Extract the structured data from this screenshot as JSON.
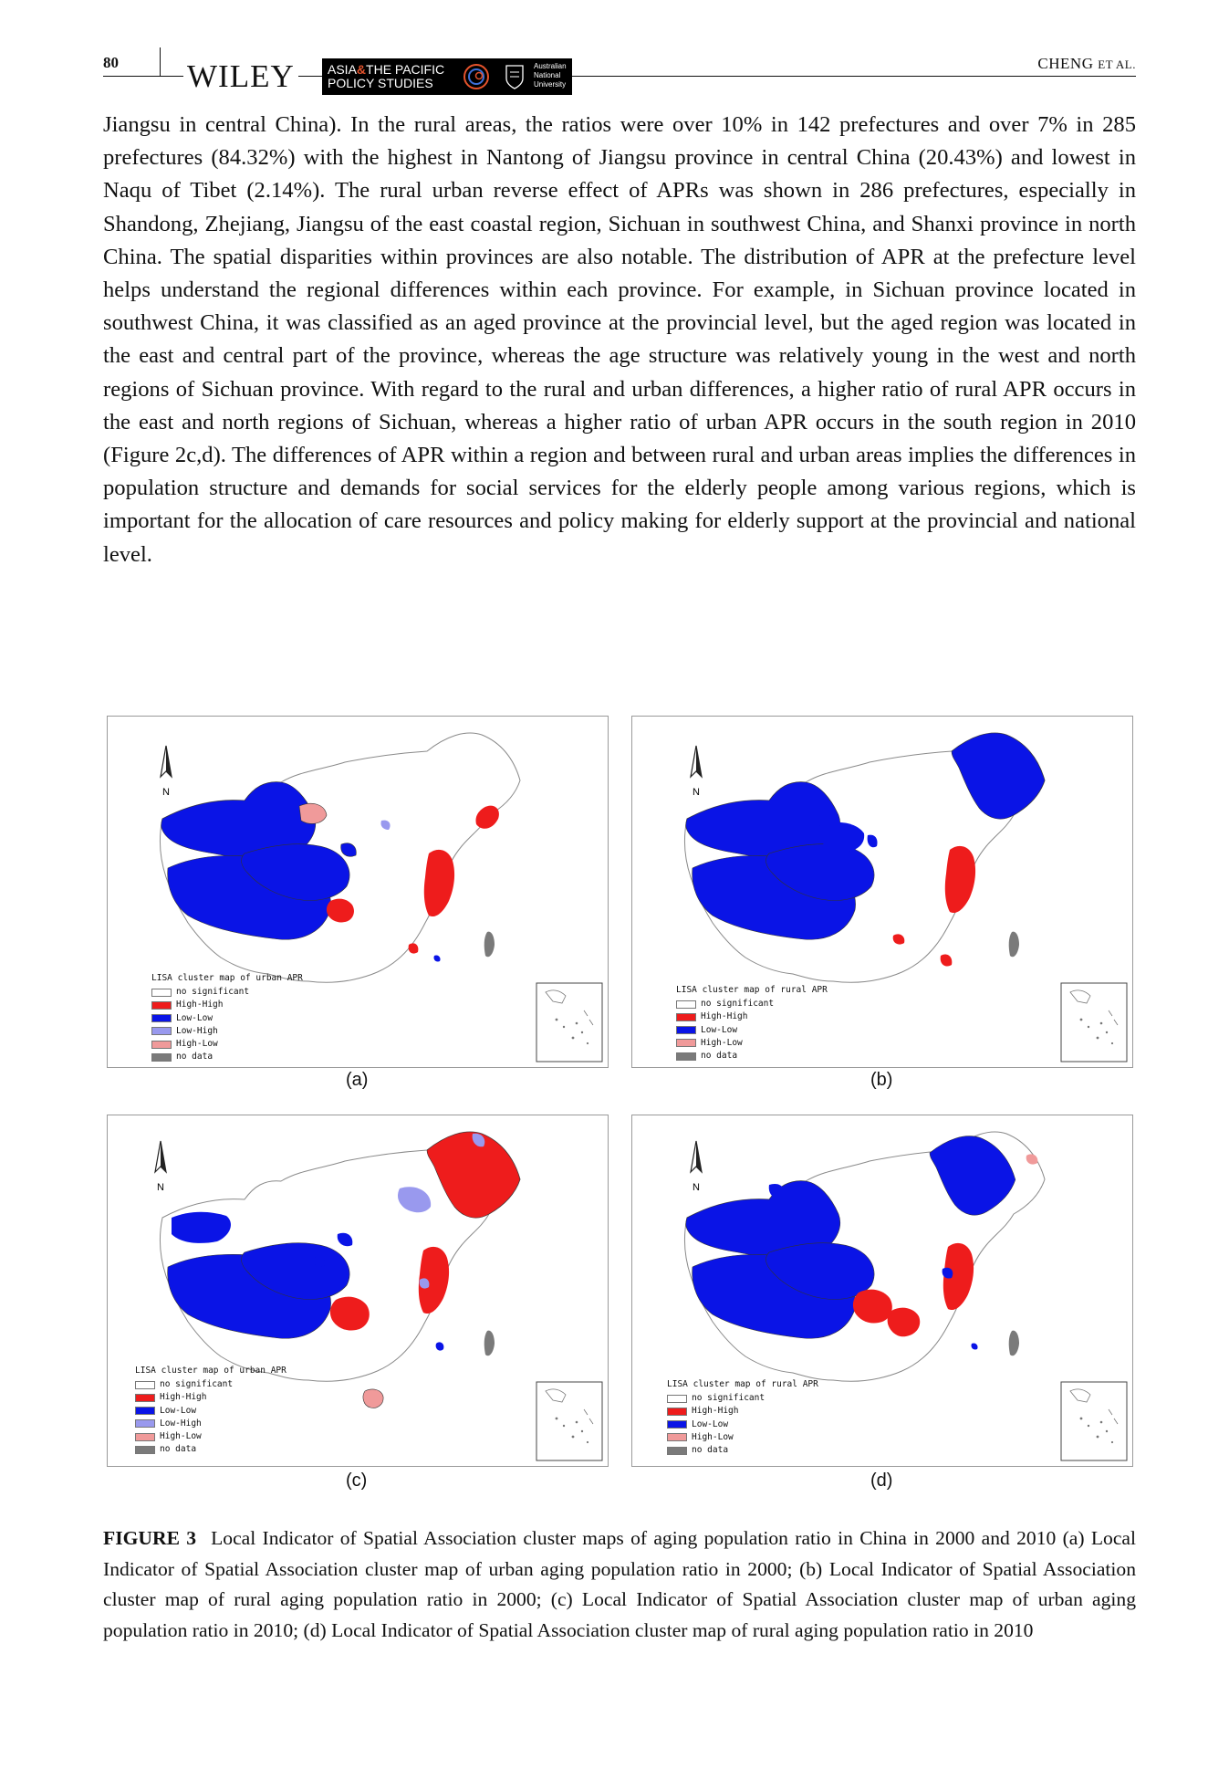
{
  "header": {
    "page_number": "80",
    "publisher": "WILEY",
    "journal_line1_a": "ASIA",
    "journal_amp": "&",
    "journal_line1_b": "THE PACIFIC",
    "journal_line2": "POLICY STUDIES",
    "institution": [
      "Australian",
      "National",
      "University"
    ],
    "running_author": "CHENG",
    "running_etal": "ET AL."
  },
  "body_paragraph": "Jiangsu in central China). In the rural areas, the ratios were over 10% in 142 prefectures and over 7% in 285 prefectures (84.32%) with the highest in Nantong of Jiangsu province in central China (20.43%) and lowest in Naqu of Tibet (2.14%). The rural urban reverse effect of APRs was shown in 286 prefectures, especially in Shandong, Zhejiang, Jiangsu of the east coastal region, Sichuan in southwest China, and Shanxi province in north China. The spatial disparities within provinces are also notable. The distribution of APR at the prefecture level helps understand the regional differences within each province. For example, in Sichuan province located in southwest China, it was classified as an aged province at the provincial level, but the aged region was located in the east and central part of the province, whereas the age structure was relatively young in the west and north regions of Sichuan province. With regard to the rural and urban differences, a higher ratio of rural APR occurs in the east and north regions of Sichuan, whereas a higher ratio of urban APR occurs in the south region in 2010 (Figure 2c,d). The differences of APR within a region and between rural and urban areas implies the differences in population structure and demands for social services for the elderly people among various regions, which is important for the allocation of care resources and policy making for elderly support at the provincial and national level.",
  "legend_colors": {
    "no significant": "#ffffff",
    "High-High": "#ee1c1c",
    "Low-Low": "#0a14e6",
    "Low-High": "#9999ee",
    "High-Low": "#f09a9a",
    "no data": "#7a7a7a"
  },
  "north_label": "N",
  "panels": [
    {
      "label": "(a)",
      "legend_title": "LISA cluster map of urban APR",
      "legend_items": [
        "no significant",
        "High-High",
        "Low-Low",
        "Low-High",
        "High-Low",
        "no data"
      ]
    },
    {
      "label": "(b)",
      "legend_title": "LISA cluster map of rural APR",
      "legend_items": [
        "no significant",
        "High-High",
        "Low-Low",
        "High-Low",
        "no data"
      ]
    },
    {
      "label": "(c)",
      "legend_title": "LISA cluster map of urban APR",
      "legend_items": [
        "no significant",
        "High-High",
        "Low-Low",
        "Low-High",
        "High-Low",
        "no data"
      ]
    },
    {
      "label": "(d)",
      "legend_title": "LISA cluster map of rural APR",
      "legend_items": [
        "no significant",
        "High-High",
        "Low-Low",
        "High-Low",
        "no data"
      ]
    }
  ],
  "caption": {
    "label": "FIGURE 3",
    "text": "Local Indicator of Spatial Association cluster maps of aging population ratio in China in 2000 and 2010 (a) Local Indicator of Spatial Association cluster map of urban aging population ratio in 2000; (b) Local Indicator of Spatial Association cluster map of rural aging population ratio in 2000; (c) Local Indicator of Spatial Association cluster map of urban aging population ratio in 2010; (d) Local Indicator of Spatial Association cluster map of rural aging population ratio in 2010"
  }
}
